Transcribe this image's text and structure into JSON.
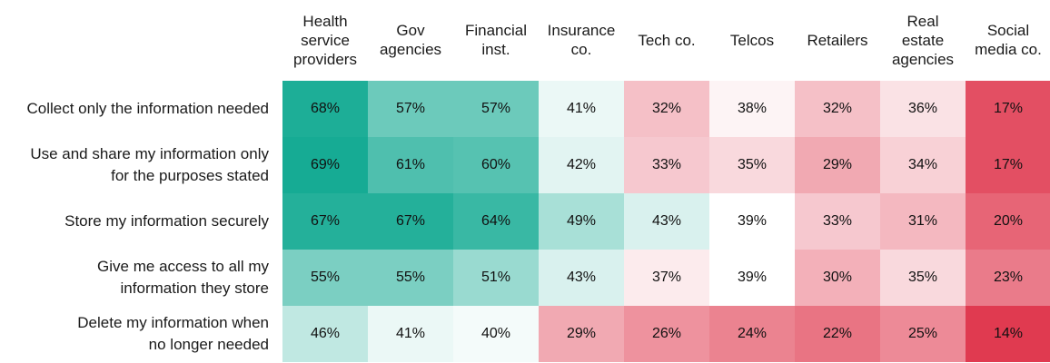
{
  "chart_data": {
    "type": "heatmap",
    "title": "",
    "columns": [
      "Health\nservice\nproviders",
      "Gov\nagencies",
      "Financial\ninst.",
      "Insurance\nco.",
      "Tech co.",
      "Telcos",
      "Retailers",
      "Real\nestate\nagencies",
      "Social\nmedia co."
    ],
    "rows": [
      [
        "Collect only the information needed"
      ],
      [
        "Use and share my information only",
        "for the purposes stated"
      ],
      [
        "Store my information securely"
      ],
      [
        "Give me access to all my",
        "information they store"
      ],
      [
        "Delete my information when",
        "no longer needed"
      ]
    ],
    "values": [
      [
        68,
        57,
        57,
        41,
        32,
        38,
        32,
        36,
        17
      ],
      [
        69,
        61,
        60,
        42,
        33,
        35,
        29,
        34,
        17
      ],
      [
        67,
        67,
        64,
        49,
        43,
        39,
        33,
        31,
        20
      ],
      [
        55,
        55,
        51,
        43,
        37,
        39,
        30,
        35,
        23
      ],
      [
        46,
        41,
        40,
        29,
        26,
        24,
        22,
        25,
        14
      ]
    ],
    "unit": "%",
    "color_scale": {
      "low": "#e03a50",
      "mid": "#ffffff",
      "high": "#16ab94",
      "midpoint": 39
    }
  }
}
